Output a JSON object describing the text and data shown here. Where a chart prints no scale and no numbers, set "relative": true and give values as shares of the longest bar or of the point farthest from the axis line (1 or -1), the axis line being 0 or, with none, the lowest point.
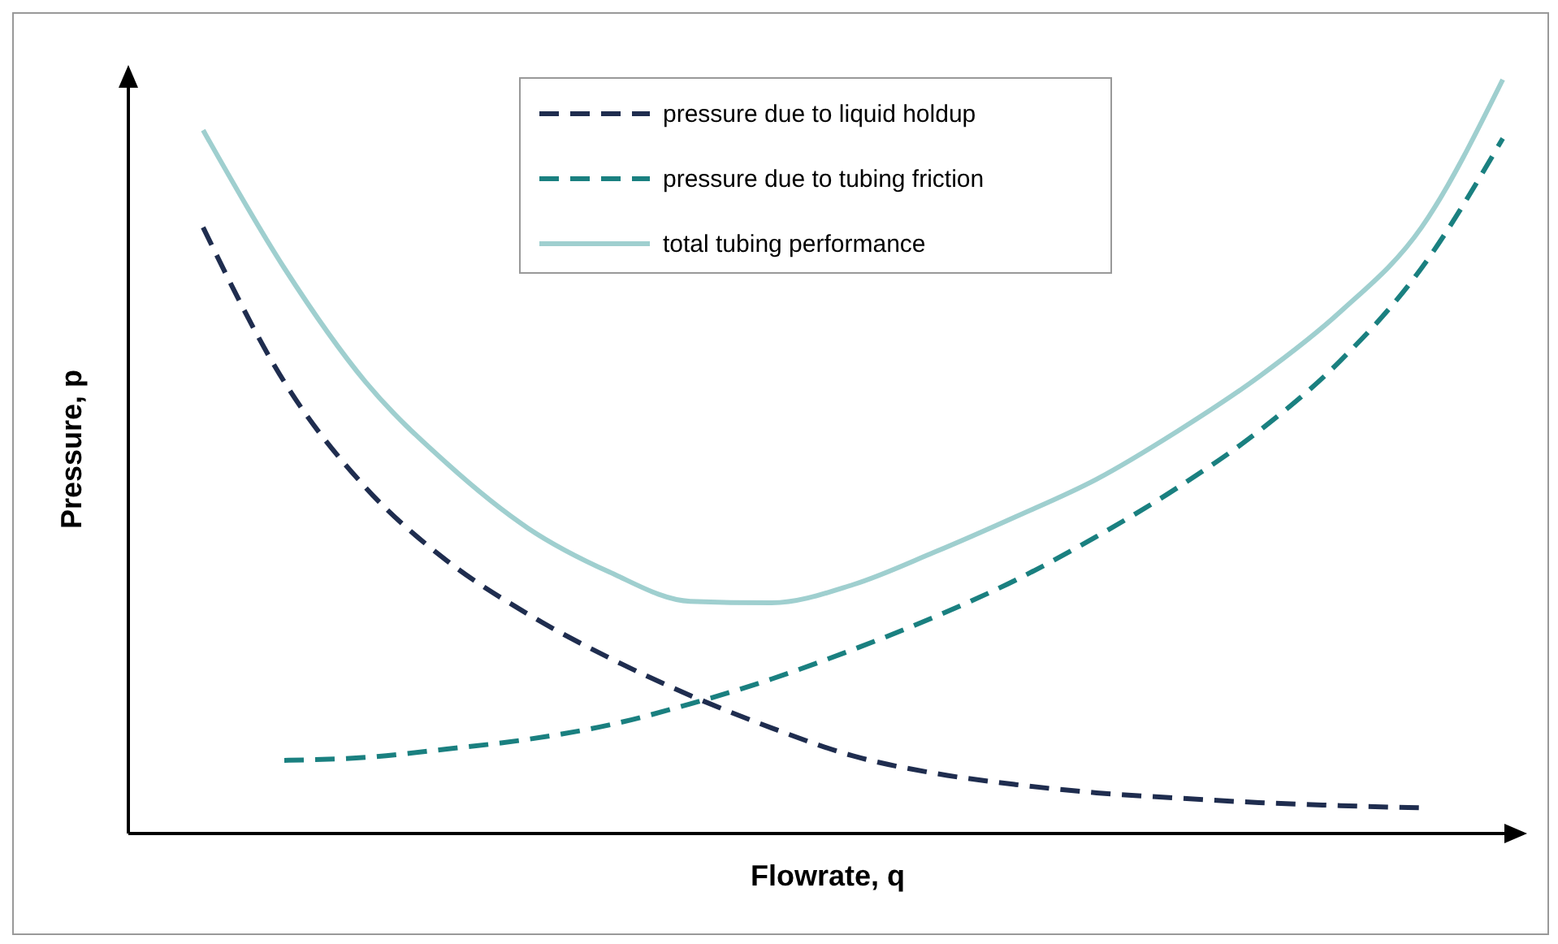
{
  "chart_data": {
    "type": "line",
    "relative": true,
    "xlabel": "Flowrate, q",
    "ylabel": "Pressure, p",
    "categories": [
      null,
      null,
      null,
      null,
      null,
      null,
      null,
      null,
      null,
      null,
      null,
      null,
      null,
      null,
      null,
      null,
      null
    ],
    "series": [
      {
        "name": "pressure due to liquid holdup",
        "color": "#1f2d4f",
        "line_style": "dashed",
        "values": [
          0.804,
          0.599,
          0.459,
          0.362,
          0.291,
          0.233,
          0.183,
          0.14,
          0.103,
          0.08,
          0.065,
          0.054,
          0.047,
          0.041,
          0.037,
          0.034,
          null
        ]
      },
      {
        "name": "pressure due to tubing friction",
        "color": "#1a8080",
        "line_style": "dashed",
        "values": [
          null,
          0.097,
          0.101,
          0.112,
          0.125,
          0.144,
          0.172,
          0.205,
          0.244,
          0.287,
          0.336,
          0.394,
          0.459,
          0.534,
          0.627,
          0.75,
          0.922
        ]
      },
      {
        "name": "total tubing performance",
        "color": "#9fcfcf",
        "line_style": "solid",
        "values": [
          0.933,
          0.75,
          0.599,
          0.491,
          0.405,
          0.347,
          0.308,
          0.306,
          0.33,
          0.373,
          0.42,
          0.47,
          0.534,
          0.606,
          0.692,
          0.804,
          1
        ]
      }
    ],
    "legend": "top",
    "marker": "none"
  }
}
